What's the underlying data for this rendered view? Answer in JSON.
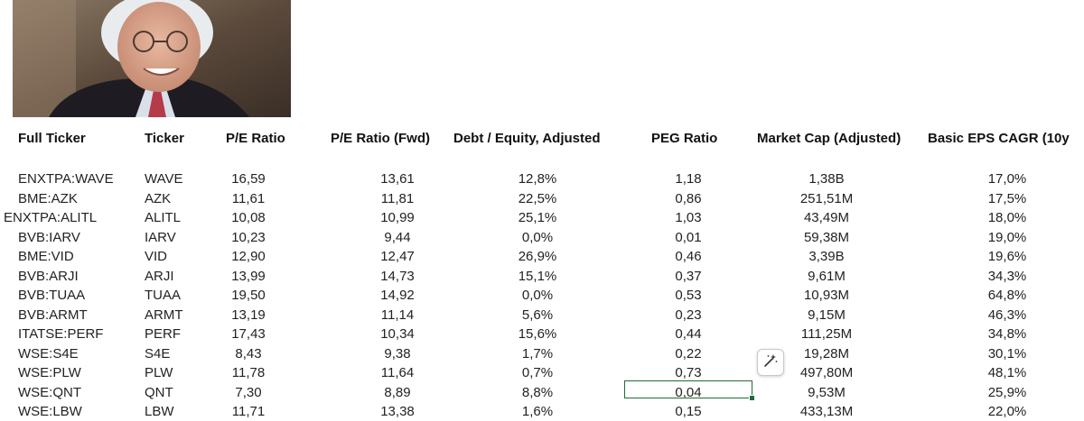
{
  "columns": [
    {
      "key": "full",
      "label": "Full Ticker"
    },
    {
      "key": "ticker",
      "label": "Ticker"
    },
    {
      "key": "pe",
      "label": "P/E Ratio"
    },
    {
      "key": "pe_fwd",
      "label": "P/E Ratio (Fwd)"
    },
    {
      "key": "de",
      "label": "Debt / Equity, Adjusted"
    },
    {
      "key": "peg",
      "label": "PEG Ratio"
    },
    {
      "key": "mcap",
      "label": "Market Cap (Adjusted)"
    },
    {
      "key": "eps",
      "label": "Basic EPS CAGR (10y"
    }
  ],
  "rows": [
    {
      "full": "ENXTPA:WAVE",
      "ticker": "WAVE",
      "pe": "16,59",
      "pe_fwd": "13,61",
      "de": "12,8%",
      "peg": "1,18",
      "mcap": "1,38B",
      "eps": "17,0%"
    },
    {
      "full": "BME:AZK",
      "ticker": "AZK",
      "pe": "11,61",
      "pe_fwd": "11,81",
      "de": "22,5%",
      "peg": "0,86",
      "mcap": "251,51M",
      "eps": "17,5%"
    },
    {
      "full": "ENXTPA:ALITL",
      "ticker": "ALITL",
      "pe": "10,08",
      "pe_fwd": "10,99",
      "de": "25,1%",
      "peg": "1,03",
      "mcap": "43,49M",
      "eps": "18,0%"
    },
    {
      "full": "BVB:IARV",
      "ticker": "IARV",
      "pe": "10,23",
      "pe_fwd": "9,44",
      "de": "0,0%",
      "peg": "0,01",
      "mcap": "59,38M",
      "eps": "19,0%"
    },
    {
      "full": "BME:VID",
      "ticker": "VID",
      "pe": "12,90",
      "pe_fwd": "12,47",
      "de": "26,9%",
      "peg": "0,46",
      "mcap": "3,39B",
      "eps": "19,6%"
    },
    {
      "full": "BVB:ARJI",
      "ticker": "ARJI",
      "pe": "13,99",
      "pe_fwd": "14,73",
      "de": "15,1%",
      "peg": "0,37",
      "mcap": "9,61M",
      "eps": "34,3%"
    },
    {
      "full": "BVB:TUAA",
      "ticker": "TUAA",
      "pe": "19,50",
      "pe_fwd": "14,92",
      "de": "0,0%",
      "peg": "0,53",
      "mcap": "10,93M",
      "eps": "64,8%"
    },
    {
      "full": "BVB:ARMT",
      "ticker": "ARMT",
      "pe": "13,19",
      "pe_fwd": "11,14",
      "de": "5,6%",
      "peg": "0,23",
      "mcap": "9,15M",
      "eps": "46,3%"
    },
    {
      "full": "ITATSE:PERF",
      "ticker": "PERF",
      "pe": "17,43",
      "pe_fwd": "10,34",
      "de": "15,6%",
      "peg": "0,44",
      "mcap": "111,25M",
      "eps": "34,8%"
    },
    {
      "full": "WSE:S4E",
      "ticker": "S4E",
      "pe": "8,43",
      "pe_fwd": "9,38",
      "de": "1,7%",
      "peg": "0,22",
      "mcap": "19,28M",
      "eps": "30,1%"
    },
    {
      "full": "WSE:PLW",
      "ticker": "PLW",
      "pe": "11,78",
      "pe_fwd": "11,64",
      "de": "0,7%",
      "peg": "0,73",
      "mcap": "497,80M",
      "eps": "48,1%"
    },
    {
      "full": "WSE:QNT",
      "ticker": "QNT",
      "pe": "7,30",
      "pe_fwd": "8,89",
      "de": "8,8%",
      "peg": "0,04",
      "mcap": "9,53M",
      "eps": "25,9%"
    },
    {
      "full": "WSE:LBW",
      "ticker": "LBW",
      "pe": "11,71",
      "pe_fwd": "13,38",
      "de": "1,6%",
      "peg": "0,15",
      "mcap": "433,13M",
      "eps": "22,0%"
    }
  ],
  "selected_cell": {
    "row": 11,
    "col": "peg"
  },
  "icons": {
    "photo": "portrait-photo",
    "quick_action": "sparkle-wand-icon"
  },
  "colors": {
    "selection": "#1e6b3a"
  }
}
